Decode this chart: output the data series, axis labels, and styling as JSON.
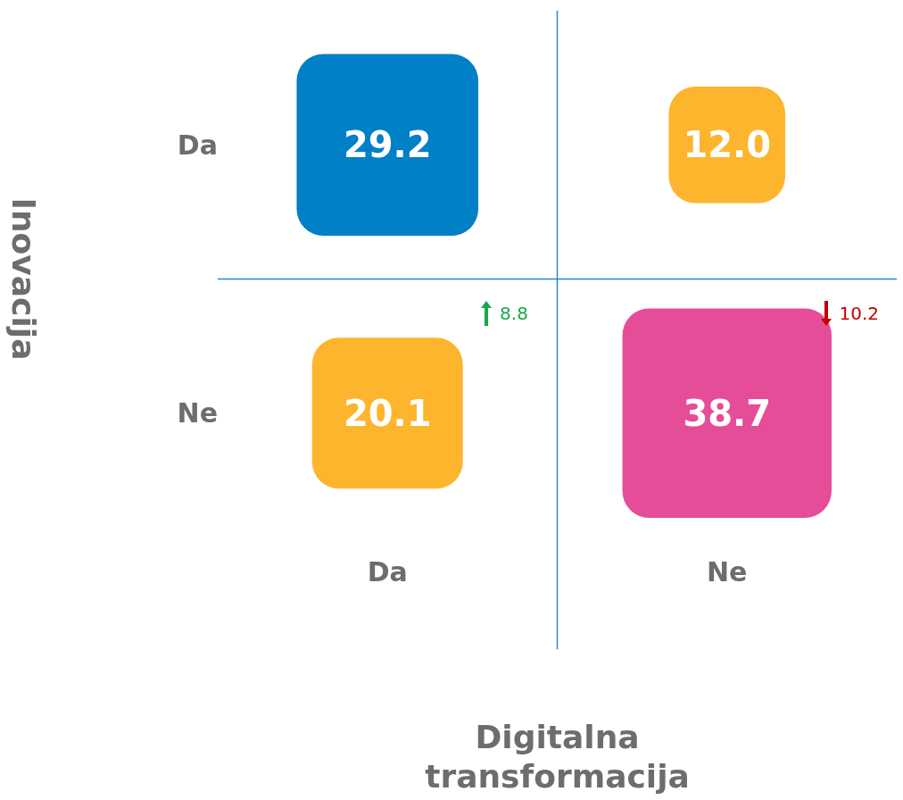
{
  "chart_data": {
    "type": "heatmap",
    "xlabel": "Digitalna transformacija",
    "ylabel": "Inovacija",
    "categories": [
      "Da",
      "Ne"
    ],
    "y_categories": [
      "Da",
      "Ne"
    ],
    "cells": [
      [
        29.2,
        12.0
      ],
      [
        20.1,
        38.7
      ]
    ],
    "colors": [
      "#0080c6",
      "#fdb52e",
      "#fdb52e",
      "#e64d98"
    ],
    "cell_labels": [
      [
        "29.2",
        "12.0"
      ],
      [
        "20.1",
        "38.7"
      ]
    ],
    "grid": true,
    "annotations": [
      "8.8",
      "10.2"
    ]
  }
}
